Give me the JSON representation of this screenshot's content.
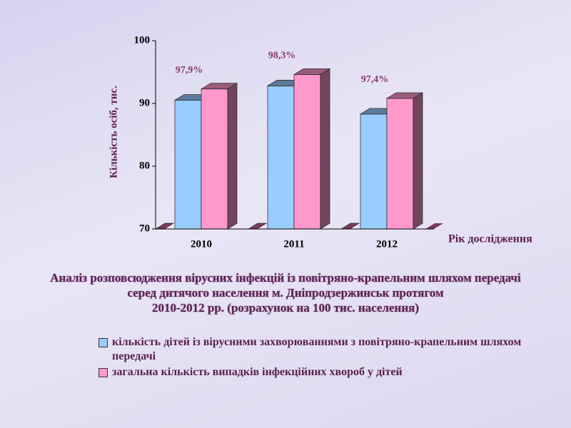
{
  "chart_data": {
    "type": "bar3d",
    "title": [
      "Аналіз розповсюдження вірусних інфекцій із повітряно-крапельним шляхом передачі",
      "серед дитячого населення м. Дніпродзержинськ протягом",
      "2010-2012 рр. (розрахунок на 100 тис. населення)"
    ],
    "y_label": "Кількість осіб, тис.",
    "x_label": "Рік дослідження",
    "categories": [
      "2010",
      "2011",
      "2012"
    ],
    "series": [
      {
        "name": "кількість дітей із вірусними захворюваннями з повітряно-крапельним шляхом передачі",
        "color": "#99ccff",
        "values": [
          90.5,
          92.8,
          88.3
        ]
      },
      {
        "name": "загальна кількість випадків інфекційних хвороб у дітей",
        "color": "#ff99cc",
        "values": [
          92.3,
          94.6,
          90.8
        ]
      }
    ],
    "annotations": [
      "97,9%",
      "98,3%",
      "97,4%"
    ],
    "ylim": [
      70,
      100
    ],
    "yticks": [
      70,
      80,
      90,
      100
    ]
  }
}
